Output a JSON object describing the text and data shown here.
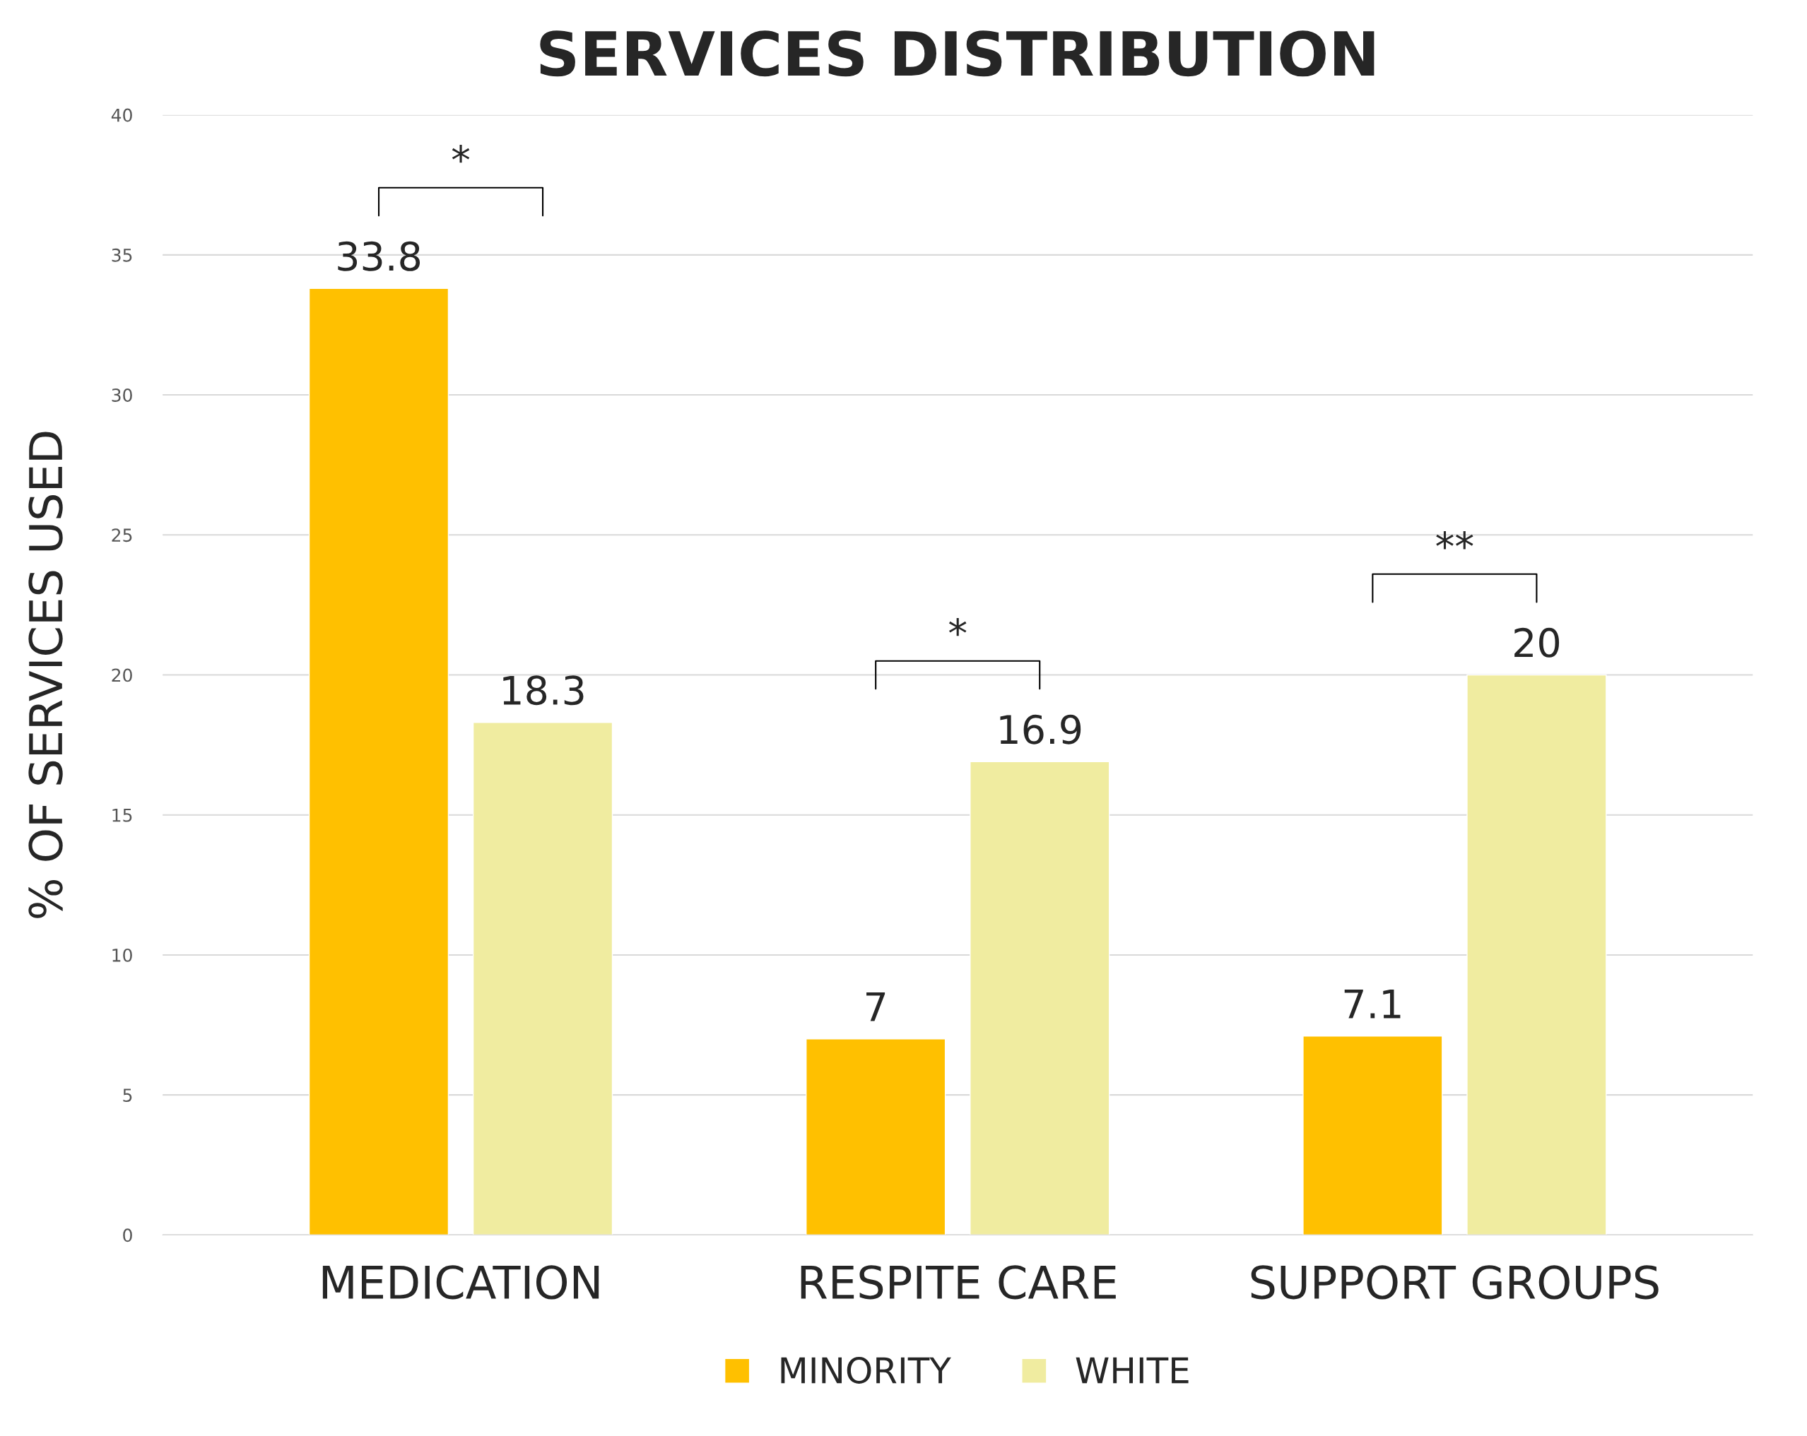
{
  "chart_data": {
    "type": "bar",
    "title": "SERVICES DISTRIBUTION",
    "ylabel": "% OF SERVICES USED",
    "categories": [
      "MEDICATION",
      "RESPITE CARE",
      "SUPPORT GROUPS"
    ],
    "series": [
      {
        "name": "MINORITY",
        "color": "#ffc000",
        "values": [
          33.8,
          7,
          7.1
        ]
      },
      {
        "name": "WHITE",
        "color": "#f0eca0",
        "values": [
          18.3,
          16.9,
          20
        ]
      }
    ],
    "ylim": [
      0,
      40
    ],
    "yticks": [
      0,
      5,
      10,
      15,
      20,
      25,
      30,
      35,
      40
    ],
    "grid": "y",
    "legend": "bottom",
    "data_labels": true,
    "annotations": [
      "*",
      "*",
      "**"
    ]
  }
}
